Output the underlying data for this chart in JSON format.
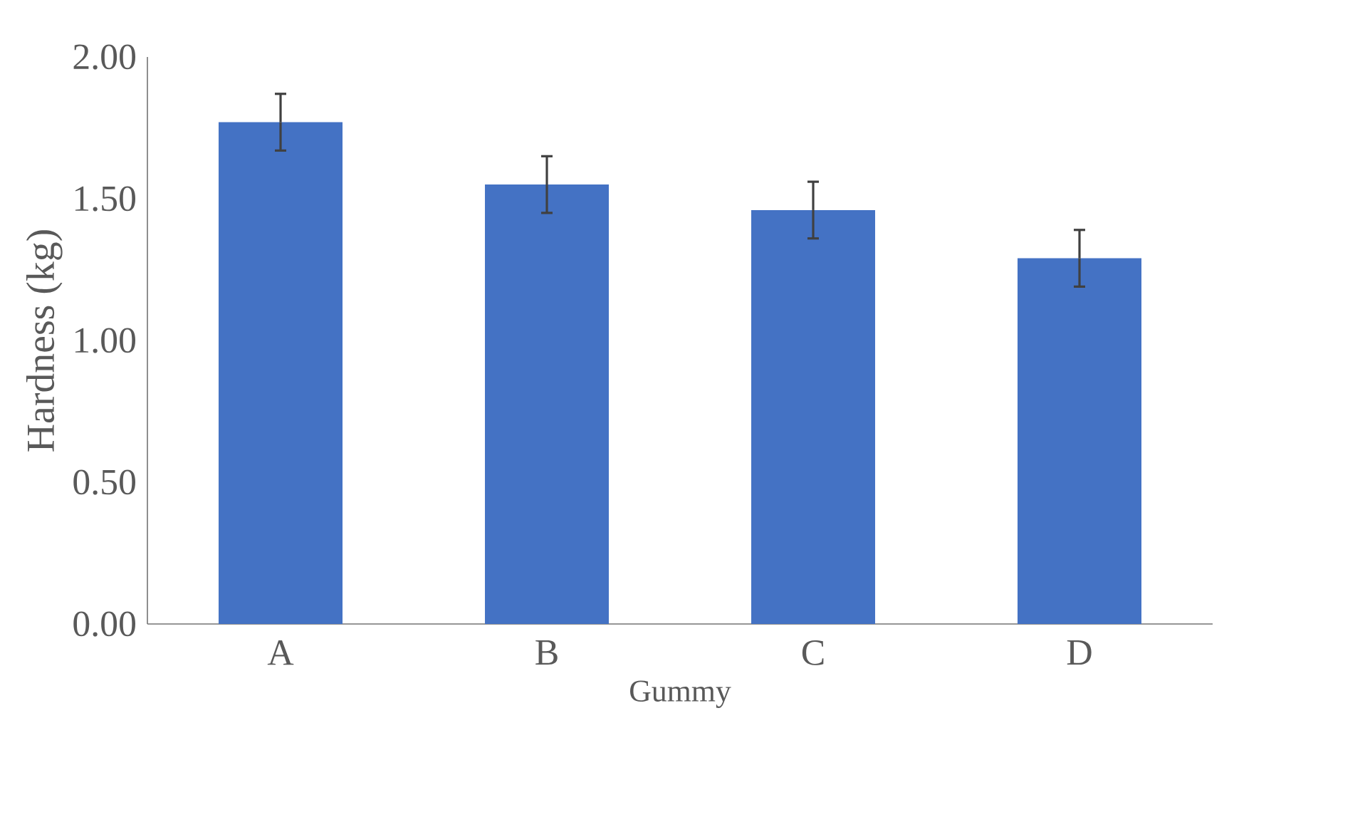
{
  "chart_data": {
    "type": "bar",
    "xlabel": "Gummy",
    "ylabel": "Hardness (kg)",
    "categories": [
      "A",
      "B",
      "C",
      "D"
    ],
    "values": [
      1.77,
      1.55,
      1.46,
      1.29
    ],
    "errors": [
      0.1,
      0.1,
      0.1,
      0.1
    ],
    "color": "#4472c4",
    "ylim": [
      0,
      2
    ],
    "yticks": [
      {
        "value": 0,
        "label": "0.00"
      },
      {
        "value": 0.5,
        "label": "0.50"
      },
      {
        "value": 1,
        "label": "1.00"
      },
      {
        "value": 1.5,
        "label": "1.50"
      },
      {
        "value": 2,
        "label": "2.00"
      }
    ],
    "grid": false
  }
}
